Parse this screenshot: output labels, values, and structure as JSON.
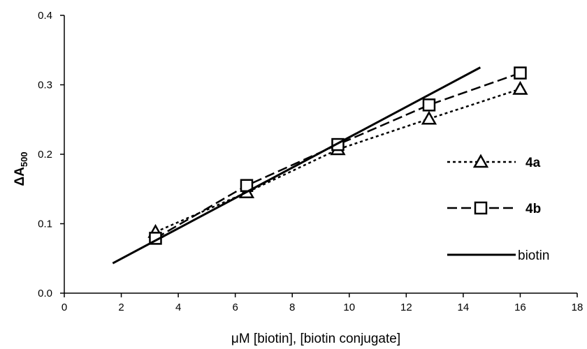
{
  "chart_data": {
    "type": "line",
    "xlabel": "μM [biotin], [biotin conjugate]",
    "ylabel_symbol": "ΔA",
    "ylabel_subscript": "500",
    "xlim": [
      0,
      18
    ],
    "ylim": [
      0.0,
      0.4
    ],
    "xticks": [
      "0",
      "2",
      "4",
      "6",
      "8",
      "10",
      "12",
      "14",
      "16",
      "18"
    ],
    "yticks": [
      "0.0",
      "0.1",
      "0.2",
      "0.3",
      "0.4"
    ],
    "grid": false,
    "legend_position": "right",
    "series": [
      {
        "name": "4a",
        "line_style": "dotted",
        "marker": "triangle",
        "x": [
          3.2,
          6.4,
          9.6,
          12.8,
          16.0
        ],
        "y": [
          0.088,
          0.145,
          0.207,
          0.251,
          0.294
        ]
      },
      {
        "name": "4b",
        "line_style": "dashed",
        "marker": "square",
        "x": [
          3.2,
          6.4,
          9.6,
          12.8,
          16.0
        ],
        "y": [
          0.079,
          0.155,
          0.214,
          0.271,
          0.317
        ]
      },
      {
        "name": "biotin",
        "line_style": "solid",
        "marker": "none",
        "x": [
          1.7,
          14.6
        ],
        "y": [
          0.043,
          0.325
        ]
      }
    ],
    "colors": {
      "line": "#000000",
      "background": "#ffffff"
    }
  }
}
